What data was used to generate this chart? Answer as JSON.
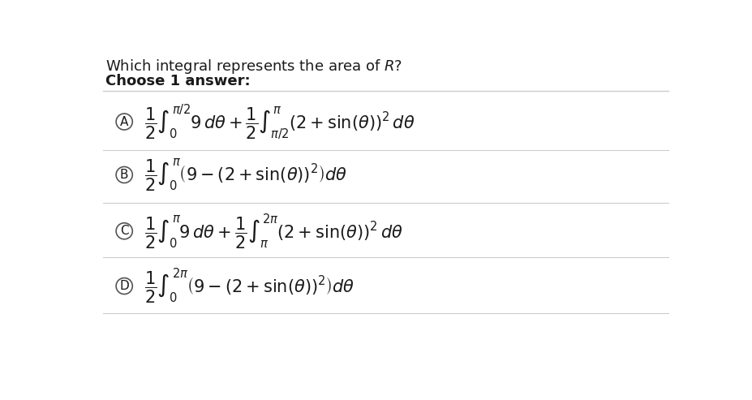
{
  "title": "Which integral represents the area of $R$?",
  "subtitle": "Choose 1 answer:",
  "background_color": "#ffffff",
  "text_color": "#1a1a1a",
  "options": [
    {
      "label": "A",
      "formula": "$\\dfrac{1}{2}\\int_{0}^{\\pi/2} 9\\, d\\theta + \\dfrac{1}{2}\\int_{\\pi/2}^{\\pi} (2+\\sin(\\theta))^2\\, d\\theta$"
    },
    {
      "label": "B",
      "formula": "$\\dfrac{1}{2}\\int_{0}^{\\pi} \\left(9 - (2+\\sin(\\theta))^2\\right) d\\theta$"
    },
    {
      "label": "C",
      "formula": "$\\dfrac{1}{2}\\int_{0}^{\\pi} 9\\, d\\theta + \\dfrac{1}{2}\\int_{\\pi}^{2\\pi} (2+\\sin(\\theta))^2\\, d\\theta$"
    },
    {
      "label": "D",
      "formula": "$\\dfrac{1}{2}\\int_{0}^{2\\pi} \\left(9 - (2+\\sin(\\theta))^2\\right) d\\theta$"
    }
  ],
  "circle_color": "#555555",
  "line_color": "#cccccc",
  "font_size_title": 13,
  "font_size_subtitle": 13,
  "font_size_formula": 15,
  "font_size_label": 11
}
